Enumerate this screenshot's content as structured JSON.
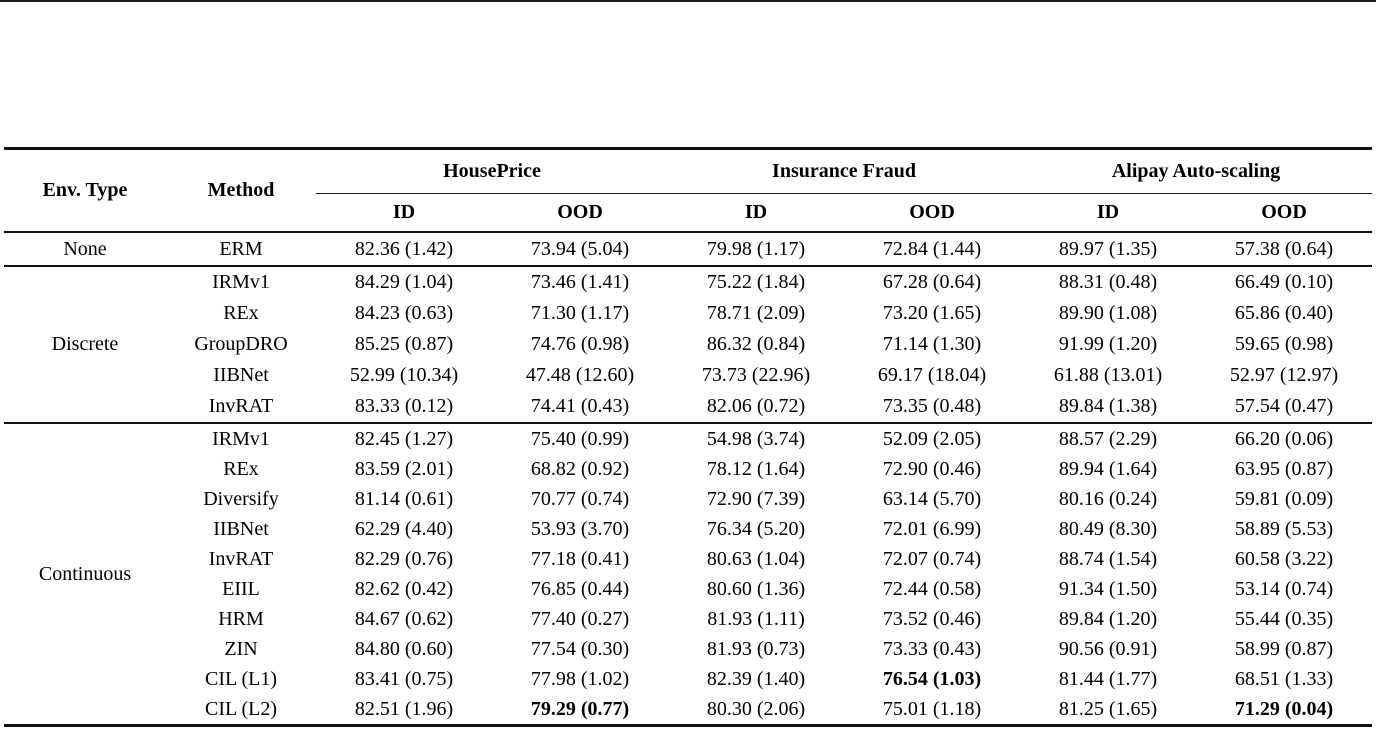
{
  "table": {
    "headers": {
      "env_type": "Env. Type",
      "method": "Method"
    },
    "col_groups": [
      {
        "label": "HousePrice"
      },
      {
        "label": "Insurance Fraud"
      },
      {
        "label": "Alipay Auto-scaling"
      }
    ],
    "sub_headers": [
      "ID",
      "OOD",
      "ID",
      "OOD",
      "ID",
      "OOD"
    ],
    "sections": [
      {
        "env_type": "None",
        "rows": [
          {
            "method": "ERM",
            "values": [
              "82.36 (1.42)",
              "73.94 (5.04)",
              "79.98 (1.17)",
              "72.84 (1.44)",
              "89.97 (1.35)",
              "57.38 (0.64)"
            ],
            "bold": []
          }
        ]
      },
      {
        "env_type": "Discrete",
        "rows": [
          {
            "method": "IRMv1",
            "values": [
              "84.29 (1.04)",
              "73.46 (1.41)",
              "75.22 (1.84)",
              "67.28 (0.64)",
              "88.31 (0.48)",
              "66.49 (0.10)"
            ],
            "bold": []
          },
          {
            "method": "REx",
            "values": [
              "84.23 (0.63)",
              "71.30 (1.17)",
              "78.71 (2.09)",
              "73.20 (1.65)",
              "89.90 (1.08)",
              "65.86 (0.40)"
            ],
            "bold": []
          },
          {
            "method": "GroupDRO",
            "values": [
              "85.25 (0.87)",
              "74.76 (0.98)",
              "86.32 (0.84)",
              "71.14 (1.30)",
              "91.99 (1.20)",
              "59.65 (0.98)"
            ],
            "bold": []
          },
          {
            "method": "IIBNet",
            "values": [
              "52.99 (10.34)",
              "47.48 (12.60)",
              "73.73 (22.96)",
              "69.17 (18.04)",
              "61.88 (13.01)",
              "52.97 (12.97)"
            ],
            "bold": []
          },
          {
            "method": "InvRAT",
            "values": [
              "83.33 (0.12)",
              "74.41 (0.43)",
              "82.06 (0.72)",
              "73.35 (0.48)",
              "89.84 (1.38)",
              "57.54 (0.47)"
            ],
            "bold": []
          }
        ]
      },
      {
        "env_type": "Continuous",
        "rows": [
          {
            "method": "IRMv1",
            "values": [
              "82.45 (1.27)",
              "75.40 (0.99)",
              "54.98 (3.74)",
              "52.09 (2.05)",
              "88.57 (2.29)",
              "66.20 (0.06)"
            ],
            "bold": []
          },
          {
            "method": "REx",
            "values": [
              "83.59 (2.01)",
              "68.82 (0.92)",
              "78.12 (1.64)",
              "72.90 (0.46)",
              "89.94 (1.64)",
              "63.95 (0.87)"
            ],
            "bold": []
          },
          {
            "method": "Diversify",
            "values": [
              "81.14 (0.61)",
              "70.77 (0.74)",
              "72.90 (7.39)",
              "63.14 (5.70)",
              "80.16 (0.24)",
              "59.81 (0.09)"
            ],
            "bold": []
          },
          {
            "method": "IIBNet",
            "values": [
              "62.29 (4.40)",
              "53.93 (3.70)",
              "76.34 (5.20)",
              "72.01 (6.99)",
              "80.49 (8.30)",
              "58.89 (5.53)"
            ],
            "bold": []
          },
          {
            "method": "InvRAT",
            "values": [
              "82.29 (0.76)",
              "77.18 (0.41)",
              "80.63 (1.04)",
              "72.07 (0.74)",
              "88.74 (1.54)",
              "60.58 (3.22)"
            ],
            "bold": []
          },
          {
            "method": "EIIL",
            "values": [
              "82.62 (0.42)",
              "76.85 (0.44)",
              "80.60 (1.36)",
              "72.44 (0.58)",
              "91.34 (1.50)",
              "53.14 (0.74)"
            ],
            "bold": []
          },
          {
            "method": "HRM",
            "values": [
              "84.67 (0.62)",
              "77.40 (0.27)",
              "81.93 (1.11)",
              "73.52 (0.46)",
              "89.84 (1.20)",
              "55.44 (0.35)"
            ],
            "bold": []
          },
          {
            "method": "ZIN",
            "values": [
              "84.80 (0.60)",
              "77.54 (0.30)",
              "81.93 (0.73)",
              "73.33 (0.43)",
              "90.56 (0.91)",
              "58.99 (0.87)"
            ],
            "bold": []
          },
          {
            "method": "CIL (L1)",
            "values": [
              "83.41 (0.75)",
              "77.98 (1.02)",
              "82.39 (1.40)",
              "76.54 (1.03)",
              "81.44 (1.77)",
              "68.51 (1.33)"
            ],
            "bold": [
              3
            ]
          },
          {
            "method": "CIL (L2)",
            "values": [
              "82.51 (1.96)",
              "79.29 (0.77)",
              "80.30 (2.06)",
              "75.01 (1.18)",
              "81.25 (1.65)",
              "71.29 (0.04)"
            ],
            "bold": [
              1,
              5
            ]
          }
        ]
      }
    ]
  }
}
